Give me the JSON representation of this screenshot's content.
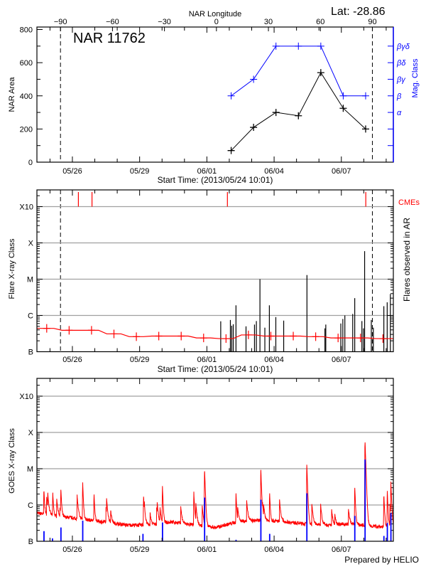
{
  "header": {
    "lat_label": "Lat: -28.86",
    "region_title": "NAR 11762"
  },
  "footer": {
    "credit": "Prepared by HELIO"
  },
  "colors": {
    "area": "#000000",
    "mag_class": "#0000ff",
    "flare_background": "#ff0000",
    "flares": "#000000",
    "cme": "#ff0000",
    "goes_long": "#ff0000",
    "goes_short": "#0000ff",
    "grid": "#a0a0a0"
  },
  "chart_data": [
    {
      "type": "line",
      "xlabel": "Start Time: (2013/05/24 10:01)",
      "xlim": [
        "2013-05-24 10:01",
        "2013-06-09 07:40"
      ],
      "x_ticks": [
        {
          "label": "05/26",
          "date": "2013-05-26 00:00"
        },
        {
          "label": "05/29",
          "date": "2013-05-29 00:00"
        },
        {
          "label": "06/01",
          "date": "2013-06-01 00:00"
        },
        {
          "label": "06/04",
          "date": "2013-06-04 00:00"
        },
        {
          "label": "06/07",
          "date": "2013-06-07 00:00"
        }
      ],
      "top_axis": {
        "label": "NAR Longitude",
        "range": [
          -103.6,
          102.1
        ],
        "ticks": [
          -90,
          -60,
          -30,
          0,
          30,
          60,
          90
        ]
      },
      "limb_lines_longitude": [
        -90,
        90
      ],
      "ylabel": "NAR Area",
      "ylim": [
        0,
        810
      ],
      "y_ticks": [
        0,
        200,
        400,
        600,
        800
      ],
      "right_axis": {
        "label": "Mag. Class",
        "ticks": [
          {
            "level": 100,
            "label": ""
          },
          {
            "level": 200,
            "label": ""
          },
          {
            "level": 300,
            "label": "α"
          },
          {
            "level": 400,
            "label": "β"
          },
          {
            "level": 500,
            "label": "βγ"
          },
          {
            "level": 600,
            "label": "βδ"
          },
          {
            "level": 700,
            "label": "βγδ"
          }
        ]
      },
      "series": [
        {
          "key": "area",
          "points": [
            {
              "date": "2013-06-02 02:00",
              "value": 70
            },
            {
              "date": "2013-06-03 02:00",
              "value": 210
            },
            {
              "date": "2013-06-04 02:00",
              "value": 300
            },
            {
              "date": "2013-06-05 02:00",
              "value": 280
            },
            {
              "date": "2013-06-06 02:00",
              "value": 540
            },
            {
              "date": "2013-06-07 02:00",
              "value": 325
            },
            {
              "date": "2013-06-08 02:00",
              "value": 200
            }
          ]
        },
        {
          "key": "mag_class",
          "points": [
            {
              "date": "2013-06-02 02:00",
              "value": "β"
            },
            {
              "date": "2013-06-03 02:00",
              "value": "βγ"
            },
            {
              "date": "2013-06-04 02:00",
              "value": "βγδ"
            },
            {
              "date": "2013-06-05 02:00",
              "value": "βγδ"
            },
            {
              "date": "2013-06-06 02:00",
              "value": "βγδ"
            },
            {
              "date": "2013-06-07 02:00",
              "value": "β"
            },
            {
              "date": "2013-06-08 02:00",
              "value": "β"
            }
          ]
        }
      ]
    },
    {
      "type": "bar",
      "xlabel": "Start Time: (2013/05/24 10:01)",
      "ylabel": "Flare X-ray Class",
      "right_label": "Flares observed in AR",
      "cme_label": "CMEs",
      "y_scale": "log",
      "y_ticks": [
        "B",
        "C",
        "M",
        "X",
        "X10"
      ],
      "grid": true,
      "cmes": [
        "2013-05-26 06:25",
        "2013-05-26 21:00",
        "2013-06-01 22:00",
        "2013-06-08 02:10"
      ],
      "background": [
        {
          "date": "2013-05-24 20:30",
          "class": "B4.4"
        },
        {
          "date": "2013-05-25 20:30",
          "class": "B3.9"
        },
        {
          "date": "2013-05-26 20:30",
          "class": "B3.9"
        },
        {
          "date": "2013-05-27 20:30",
          "class": "B3.1"
        },
        {
          "date": "2013-05-28 20:30",
          "class": "B2.6"
        },
        {
          "date": "2013-05-29 20:30",
          "class": "B2.7"
        },
        {
          "date": "2013-05-30 20:30",
          "class": "B2.7"
        },
        {
          "date": "2013-05-31 20:30",
          "class": "B2.4"
        },
        {
          "date": "2013-06-01 20:30",
          "class": "B2.3"
        },
        {
          "date": "2013-06-02 20:30",
          "class": "B2.9"
        },
        {
          "date": "2013-06-03 20:30",
          "class": "B2.7"
        },
        {
          "date": "2013-06-04 20:30",
          "class": "B2.7"
        },
        {
          "date": "2013-06-05 20:30",
          "class": "B2.6"
        },
        {
          "date": "2013-06-06 20:30",
          "class": "B2.4"
        },
        {
          "date": "2013-06-07 20:30",
          "class": "B2.4"
        },
        {
          "date": "2013-06-08 20:30",
          "class": "B2.3"
        }
      ],
      "flares": [
        {
          "date": "2013-06-01 14:50",
          "class": "B6.9"
        },
        {
          "date": "2013-06-02 01:10",
          "class": "B7.5"
        },
        {
          "date": "2013-06-02 02:35",
          "class": "B5.2"
        },
        {
          "date": "2013-06-02 04:15",
          "class": "B5.7"
        },
        {
          "date": "2013-06-02 07:10",
          "class": "C1.9"
        },
        {
          "date": "2013-06-02 17:55",
          "class": "B5.0"
        },
        {
          "date": "2013-06-03 03:00",
          "class": "B5.6"
        },
        {
          "date": "2013-06-03 05:00",
          "class": "B7.0"
        },
        {
          "date": "2013-06-03 08:50",
          "class": "M1.0"
        },
        {
          "date": "2013-06-03 14:05",
          "class": "B4.6"
        },
        {
          "date": "2013-06-03 18:55",
          "class": "C1.9"
        },
        {
          "date": "2013-06-04 01:50",
          "class": "B9.0"
        },
        {
          "date": "2013-06-04 10:15",
          "class": "B7.2"
        },
        {
          "date": "2013-06-05 11:10",
          "class": "M1.3"
        },
        {
          "date": "2013-06-06 06:25",
          "class": "B4.4"
        },
        {
          "date": "2013-06-06 07:20",
          "class": "B5.6"
        },
        {
          "date": "2013-06-06 23:25",
          "class": "B6.0"
        },
        {
          "date": "2013-06-07 01:35",
          "class": "B8.0"
        },
        {
          "date": "2013-06-07 03:45",
          "class": "C1.0"
        },
        {
          "date": "2013-06-07 12:10",
          "class": "C1.1"
        },
        {
          "date": "2013-06-07 14:20",
          "class": "C3.0"
        },
        {
          "date": "2013-06-07 22:00",
          "class": "B7.0"
        },
        {
          "date": "2013-06-07 23:40",
          "class": "B4.4"
        },
        {
          "date": "2013-06-08 00:55",
          "class": "M5.9"
        },
        {
          "date": "2013-06-08 08:05",
          "class": "B7.5"
        },
        {
          "date": "2013-06-08 10:15",
          "class": "B4.6"
        },
        {
          "date": "2013-06-08 21:30",
          "class": "C1.8"
        },
        {
          "date": "2013-06-09 01:05",
          "class": "C2.3"
        },
        {
          "date": "2013-06-09 04:30",
          "class": "C3.9"
        }
      ]
    },
    {
      "type": "line",
      "ylabel": "GOES X-ray Class",
      "y_scale": "log",
      "y_ticks": [
        "B",
        "C",
        "M",
        "X",
        "X10"
      ],
      "grid": true,
      "series": [
        {
          "key": "long_channel",
          "baseline": [
            {
              "date": "2013-05-24 10:00",
              "class": "B6.0"
            },
            {
              "date": "2013-05-25 10:00",
              "class": "B4.8"
            },
            {
              "date": "2013-05-26 10:00",
              "class": "B4.1"
            },
            {
              "date": "2013-05-27 10:00",
              "class": "B3.4"
            },
            {
              "date": "2013-05-28 10:00",
              "class": "B2.8"
            },
            {
              "date": "2013-05-29 10:00",
              "class": "B2.8"
            },
            {
              "date": "2013-05-30 10:00",
              "class": "B3.4"
            },
            {
              "date": "2013-05-31 10:00",
              "class": "B2.8"
            },
            {
              "date": "2013-06-01 10:00",
              "class": "B2.4"
            },
            {
              "date": "2013-06-02 10:00",
              "class": "B3.5"
            },
            {
              "date": "2013-06-03 10:00",
              "class": "B3.8"
            },
            {
              "date": "2013-06-04 10:00",
              "class": "B3.5"
            },
            {
              "date": "2013-06-05 10:00",
              "class": "B3.0"
            },
            {
              "date": "2013-06-06 10:00",
              "class": "B2.8"
            },
            {
              "date": "2013-06-07 10:00",
              "class": "B3.0"
            },
            {
              "date": "2013-06-08 10:00",
              "class": "B2.6"
            },
            {
              "date": "2013-06-09 10:00",
              "class": "B2.4"
            }
          ],
          "peaks": [
            {
              "date": "2013-05-24 17:30",
              "class": "C2.2"
            },
            {
              "date": "2013-05-25 03:00",
              "class": "C1.7"
            },
            {
              "date": "2013-05-25 11:40",
              "class": "C2.3"
            },
            {
              "date": "2013-05-26 11:00",
              "class": "C3.9"
            },
            {
              "date": "2013-05-26 23:10",
              "class": "C1.7"
            },
            {
              "date": "2013-05-29 04:15",
              "class": "C1.6"
            },
            {
              "date": "2013-05-30 00:25",
              "class": "C3.0"
            },
            {
              "date": "2013-05-31 10:00",
              "class": "C1.4"
            },
            {
              "date": "2013-05-31 21:30",
              "class": "M1.0"
            },
            {
              "date": "2013-06-02 07:10",
              "class": "C1.9"
            },
            {
              "date": "2013-06-03 09:45",
              "class": "M1.0"
            },
            {
              "date": "2013-06-03 19:10",
              "class": "C1.9"
            },
            {
              "date": "2013-06-05 11:00",
              "class": "M1.3"
            },
            {
              "date": "2013-06-07 14:20",
              "class": "C3.1"
            },
            {
              "date": "2013-06-08 01:20",
              "class": "M6.1"
            },
            {
              "date": "2013-06-08 21:30",
              "class": "C1.8"
            },
            {
              "date": "2013-06-09 01:10",
              "class": "C2.4"
            },
            {
              "date": "2013-06-09 05:00",
              "class": "C4.0"
            }
          ]
        },
        {
          "key": "short_channel",
          "peaks": [
            {
              "date": "2013-05-24 17:30",
              "class": "B1.9"
            },
            {
              "date": "2013-05-25 02:35",
              "class": "B1.2"
            },
            {
              "date": "2013-05-25 11:40",
              "class": "B2.4"
            },
            {
              "date": "2013-05-26 11:00",
              "class": "B3.7"
            },
            {
              "date": "2013-05-29 03:30",
              "class": "B1.6"
            },
            {
              "date": "2013-05-30 00:25",
              "class": "B3.3"
            },
            {
              "date": "2013-05-31 21:30",
              "class": "C1.6"
            },
            {
              "date": "2013-06-02 07:10",
              "class": "B1.1"
            },
            {
              "date": "2013-06-03 09:45",
              "class": "C1.4"
            },
            {
              "date": "2013-06-03 19:10",
              "class": "B1.6"
            },
            {
              "date": "2013-06-05 11:00",
              "class": "C2.1"
            },
            {
              "date": "2013-06-07 14:20",
              "class": "B5.0"
            },
            {
              "date": "2013-06-08 01:20",
              "class": "M1.8"
            },
            {
              "date": "2013-06-08 21:30",
              "class": "B1.4"
            },
            {
              "date": "2013-06-09 01:10",
              "class": "B3.2"
            },
            {
              "date": "2013-06-09 05:00",
              "class": "B6.0"
            }
          ]
        }
      ]
    }
  ]
}
